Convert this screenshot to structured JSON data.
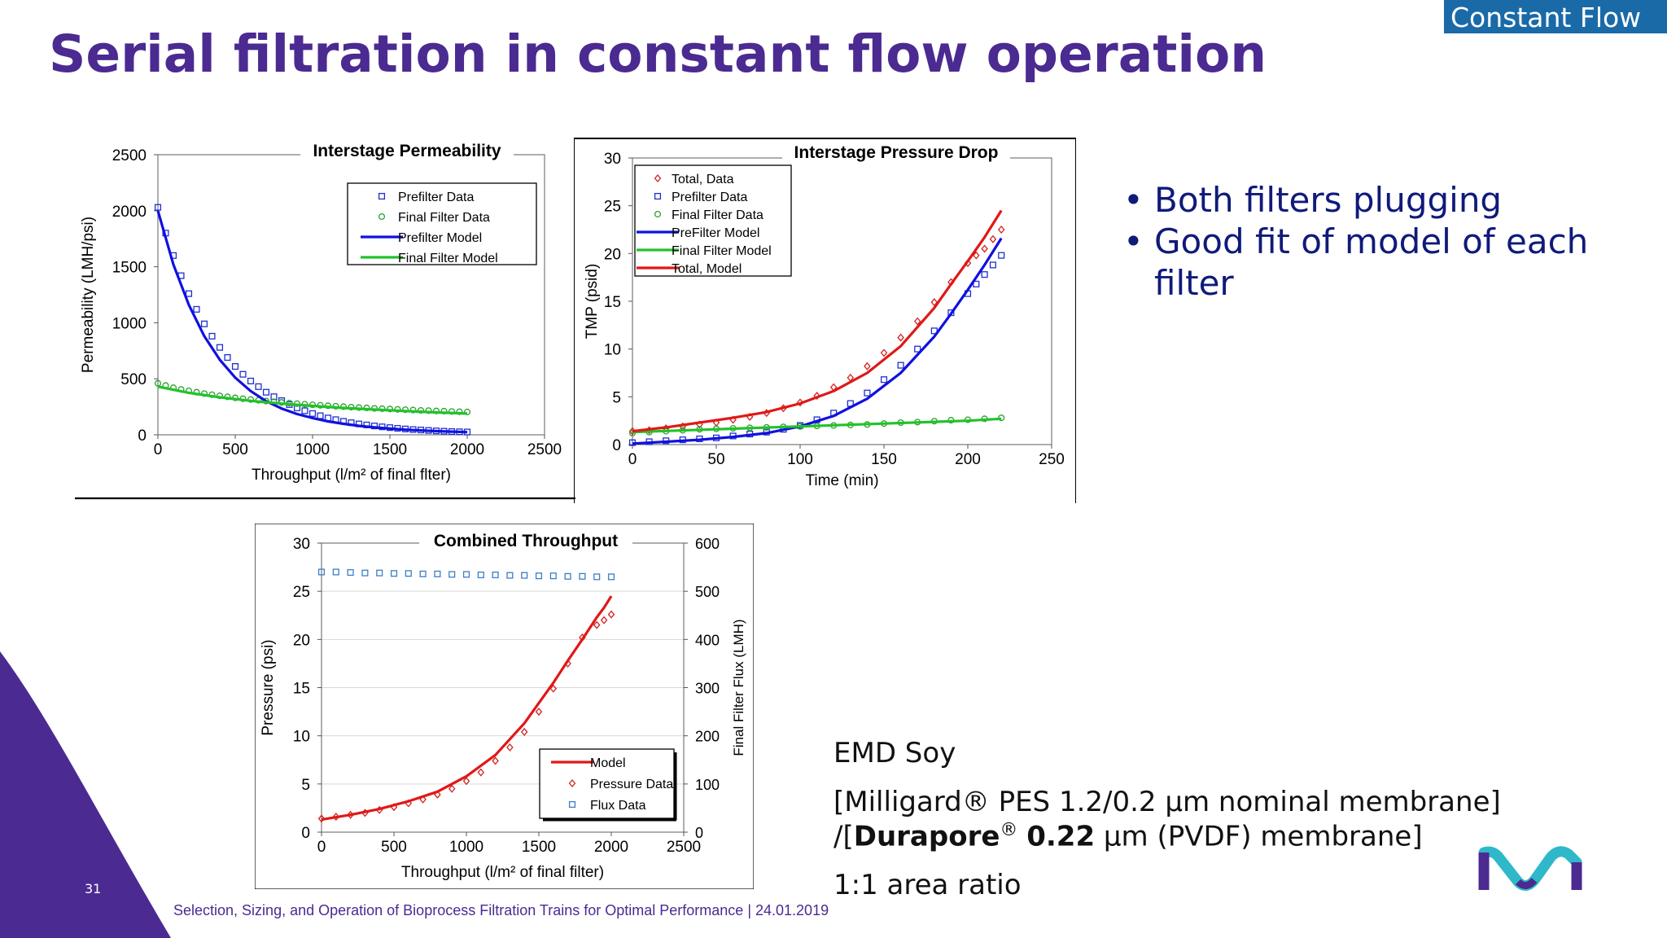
{
  "header": {
    "tag": "Constant Flow",
    "title": "Serial filtration in constant flow operation"
  },
  "bullets": [
    "Both filters plugging",
    "Good fit of model of each filter"
  ],
  "description": {
    "line1": "EMD Soy",
    "line2": "[Milligard® PES 1.2/0.2 µm nominal membrane]",
    "line3_pre": "/[",
    "line3_bold1": "Durapore",
    "line3_sup": "®",
    "line3_bold2": "0.22",
    "line3_post": " µm (PVDF) membrane]",
    "line4": "1:1 area ratio"
  },
  "footer": {
    "page_number": "31",
    "text": "Selection, Sizing, and Operation of Bioprocess Filtration Trains for Optimal Performance | 24.01.2019"
  },
  "colors": {
    "purple": "#4b2a91",
    "navy": "#0f1a7a",
    "tag_blue": "#1a6aa8",
    "teal": "#2fb8c9"
  },
  "chart_data": [
    {
      "type": "scatter",
      "title": "Interstage   Permeability",
      "xlabel": "Throughput  (l/m² of final flter)",
      "ylabel": "Permeability (LMH/psi)",
      "xlim": [
        0,
        2500
      ],
      "ylim": [
        0,
        2500
      ],
      "xticks": [
        0,
        500,
        1000,
        1500,
        2000,
        2500
      ],
      "yticks": [
        0,
        500,
        1000,
        1500,
        2000,
        2500
      ],
      "legend_position": "top-right",
      "series": [
        {
          "name": "Prefilter Data",
          "kind": "points",
          "marker": "square",
          "color": "#1f2fd1",
          "x": [
            0,
            50,
            100,
            150,
            200,
            250,
            300,
            350,
            400,
            450,
            500,
            550,
            600,
            650,
            700,
            750,
            800,
            850,
            900,
            950,
            1000,
            1050,
            1100,
            1150,
            1200,
            1250,
            1300,
            1350,
            1400,
            1450,
            1500,
            1550,
            1600,
            1650,
            1700,
            1750,
            1800,
            1850,
            1900,
            1950,
            2000
          ],
          "y": [
            2030,
            1800,
            1600,
            1420,
            1260,
            1120,
            990,
            880,
            780,
            690,
            610,
            540,
            480,
            430,
            380,
            340,
            305,
            270,
            240,
            215,
            190,
            170,
            150,
            135,
            120,
            108,
            97,
            88,
            79,
            71,
            64,
            58,
            52,
            47,
            43,
            39,
            35,
            32,
            29,
            27,
            25
          ]
        },
        {
          "name": "Final Filter Data",
          "kind": "points",
          "marker": "circle",
          "color": "#2aa02a",
          "x": [
            0,
            50,
            100,
            150,
            200,
            250,
            300,
            350,
            400,
            450,
            500,
            550,
            600,
            650,
            700,
            750,
            800,
            850,
            900,
            950,
            1000,
            1050,
            1100,
            1150,
            1200,
            1250,
            1300,
            1350,
            1400,
            1450,
            1500,
            1550,
            1600,
            1650,
            1700,
            1750,
            1800,
            1850,
            1900,
            1950,
            2000
          ],
          "y": [
            460,
            440,
            420,
            405,
            392,
            380,
            368,
            358,
            348,
            339,
            330,
            322,
            315,
            308,
            301,
            295,
            289,
            283,
            278,
            273,
            268,
            263,
            259,
            255,
            251,
            247,
            243,
            240,
            236,
            233,
            230,
            227,
            224,
            221,
            218,
            216,
            213,
            211,
            208,
            206,
            204
          ]
        },
        {
          "name": "Prefilter Model",
          "kind": "line",
          "color": "#1010e0",
          "x": [
            0,
            100,
            200,
            300,
            400,
            500,
            600,
            700,
            800,
            900,
            1000,
            1100,
            1200,
            1300,
            1400,
            1500,
            1600,
            1700,
            1800,
            1900,
            2000
          ],
          "y": [
            2000,
            1520,
            1160,
            880,
            670,
            510,
            390,
            300,
            235,
            185,
            150,
            120,
            98,
            80,
            66,
            55,
            46,
            39,
            33,
            28,
            24
          ]
        },
        {
          "name": "Final Filter Model",
          "kind": "line",
          "color": "#22c22a",
          "x": [
            0,
            200,
            400,
            600,
            800,
            1000,
            1200,
            1400,
            1600,
            1800,
            2000
          ],
          "y": [
            430,
            375,
            335,
            303,
            278,
            258,
            240,
            225,
            212,
            200,
            190
          ]
        }
      ]
    },
    {
      "type": "scatter",
      "title": "Interstage  Pressure  Drop",
      "xlabel": "Time (min)",
      "ylabel": "TMP (psid)",
      "xlim": [
        0,
        250
      ],
      "ylim": [
        0,
        30
      ],
      "xticks": [
        0,
        50,
        100,
        150,
        200,
        250
      ],
      "yticks": [
        0,
        5,
        10,
        15,
        20,
        25,
        30
      ],
      "legend_position": "top-left",
      "series": [
        {
          "name": "Total, Data",
          "kind": "points",
          "marker": "diamond",
          "color": "#d42020",
          "x": [
            0,
            10,
            20,
            30,
            40,
            50,
            60,
            70,
            80,
            90,
            100,
            110,
            120,
            130,
            140,
            150,
            160,
            170,
            180,
            190,
            200,
            205,
            210,
            215,
            220
          ],
          "y": [
            1.4,
            1.5,
            1.7,
            1.9,
            2.1,
            2.3,
            2.6,
            2.9,
            3.3,
            3.8,
            4.4,
            5.1,
            6.0,
            7.0,
            8.2,
            9.6,
            11.2,
            12.9,
            14.9,
            17.0,
            19.0,
            19.8,
            20.5,
            21.5,
            22.5
          ]
        },
        {
          "name": "Prefilter Data",
          "kind": "points",
          "marker": "square",
          "color": "#1f2fd1",
          "x": [
            0,
            10,
            20,
            30,
            40,
            50,
            60,
            70,
            80,
            90,
            100,
            110,
            120,
            130,
            140,
            150,
            160,
            170,
            180,
            190,
            200,
            205,
            210,
            215,
            220
          ],
          "y": [
            0.2,
            0.3,
            0.4,
            0.5,
            0.6,
            0.7,
            0.9,
            1.1,
            1.3,
            1.6,
            2.0,
            2.6,
            3.3,
            4.3,
            5.4,
            6.8,
            8.3,
            10.0,
            11.9,
            13.8,
            15.8,
            16.8,
            17.8,
            18.8,
            19.8
          ]
        },
        {
          "name": "Final Filter Data",
          "kind": "points",
          "marker": "circle",
          "color": "#2aa02a",
          "x": [
            0,
            10,
            20,
            30,
            40,
            50,
            60,
            70,
            80,
            90,
            100,
            110,
            120,
            130,
            140,
            150,
            160,
            170,
            180,
            190,
            200,
            210,
            220
          ],
          "y": [
            1.2,
            1.3,
            1.4,
            1.5,
            1.6,
            1.65,
            1.7,
            1.75,
            1.8,
            1.85,
            1.9,
            1.95,
            2.0,
            2.05,
            2.1,
            2.2,
            2.3,
            2.35,
            2.45,
            2.55,
            2.6,
            2.7,
            2.8
          ]
        },
        {
          "name": "PreFilter Model",
          "kind": "line",
          "color": "#1010e0",
          "x": [
            0,
            20,
            40,
            60,
            80,
            100,
            120,
            140,
            160,
            180,
            190,
            200,
            210,
            220
          ],
          "y": [
            0.1,
            0.3,
            0.5,
            0.8,
            1.2,
            1.9,
            3.0,
            4.8,
            7.5,
            11.3,
            13.7,
            16.2,
            18.8,
            21.6
          ]
        },
        {
          "name": "Final Filter Model",
          "kind": "line",
          "color": "#22c22a",
          "x": [
            0,
            50,
            100,
            150,
            200,
            220
          ],
          "y": [
            1.3,
            1.6,
            1.9,
            2.2,
            2.5,
            2.7
          ]
        },
        {
          "name": "Total, Model",
          "kind": "line",
          "color": "#e01818",
          "x": [
            0,
            20,
            40,
            60,
            80,
            100,
            120,
            140,
            160,
            180,
            190,
            200,
            210,
            220
          ],
          "y": [
            1.4,
            1.8,
            2.3,
            2.8,
            3.4,
            4.3,
            5.6,
            7.5,
            10.3,
            14.3,
            16.8,
            19.2,
            21.7,
            24.5
          ]
        }
      ]
    },
    {
      "type": "scatter",
      "title": "Combined Throughput",
      "xlabel": "Throughput  (l/m² of final filter)",
      "ylabel": "Pressure  (psi)",
      "y2label": "Final Filter Flux (LMH)",
      "xlim": [
        0,
        2500
      ],
      "ylim": [
        0,
        30
      ],
      "y2lim": [
        0,
        600
      ],
      "xticks": [
        0,
        500,
        1000,
        1500,
        2000,
        2500
      ],
      "yticks": [
        0,
        5,
        10,
        15,
        20,
        25,
        30
      ],
      "y2ticks": [
        0,
        100,
        200,
        300,
        400,
        500,
        600
      ],
      "legend_position": "bottom-right",
      "series": [
        {
          "name": "Model",
          "kind": "line",
          "color": "#e01818",
          "axis": "y",
          "x": [
            0,
            200,
            400,
            600,
            800,
            1000,
            1200,
            1400,
            1600,
            1700,
            1800,
            1900,
            1950,
            2000
          ],
          "y": [
            1.3,
            1.8,
            2.4,
            3.2,
            4.2,
            5.8,
            8.0,
            11.3,
            15.5,
            17.8,
            20.0,
            22.3,
            23.3,
            24.5
          ]
        },
        {
          "name": "Pressure Data",
          "kind": "points",
          "marker": "diamond",
          "color": "#d42020",
          "axis": "y",
          "x": [
            0,
            100,
            200,
            300,
            400,
            500,
            600,
            700,
            800,
            900,
            1000,
            1100,
            1200,
            1300,
            1400,
            1500,
            1600,
            1700,
            1800,
            1900,
            1950,
            2000
          ],
          "y": [
            1.4,
            1.6,
            1.8,
            2.0,
            2.3,
            2.6,
            3.0,
            3.4,
            3.9,
            4.5,
            5.3,
            6.2,
            7.4,
            8.8,
            10.4,
            12.5,
            14.9,
            17.5,
            20.2,
            21.5,
            22.0,
            22.6
          ]
        },
        {
          "name": "Flux Data",
          "kind": "points",
          "marker": "square",
          "color": "#3a7dc9",
          "axis": "y2",
          "x": [
            0,
            100,
            200,
            300,
            400,
            500,
            600,
            700,
            800,
            900,
            1000,
            1100,
            1200,
            1300,
            1400,
            1500,
            1600,
            1700,
            1800,
            1900,
            2000
          ],
          "y": [
            540,
            540,
            539,
            538,
            538,
            537,
            537,
            536,
            536,
            535,
            535,
            534,
            534,
            533,
            533,
            532,
            532,
            531,
            531,
            530,
            530
          ]
        }
      ]
    }
  ]
}
